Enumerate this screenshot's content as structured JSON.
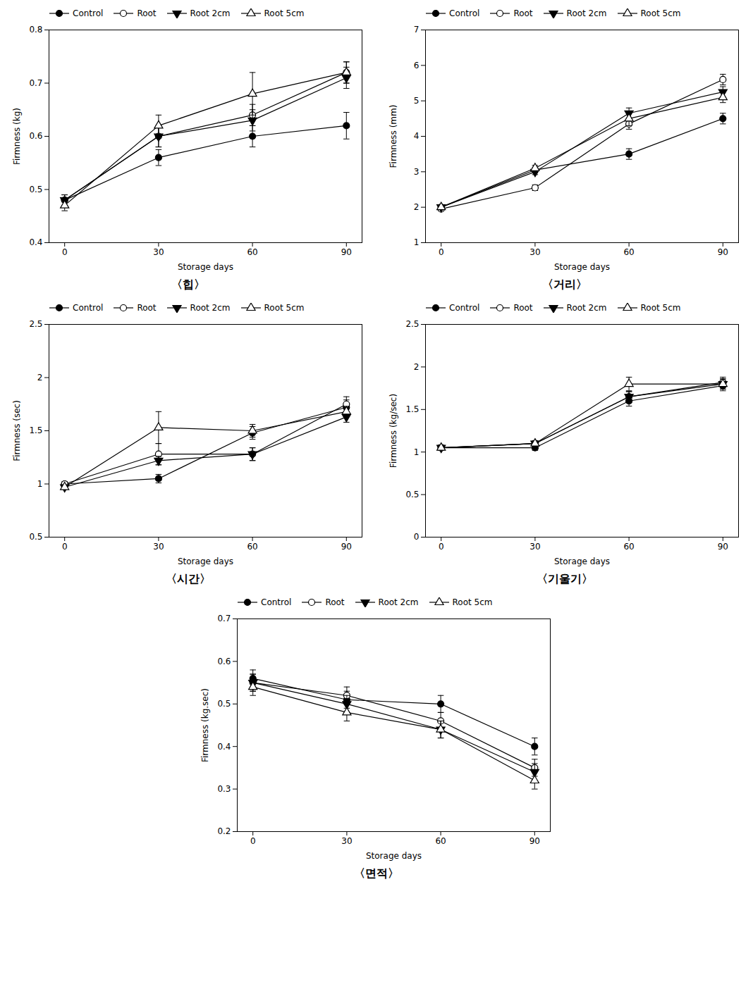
{
  "chart_data": [
    {
      "type": "line",
      "title": "〈힙〉",
      "xlabel": "Storage days",
      "ylabel": "Firmness (kg)",
      "x": [
        0,
        30,
        60,
        90
      ],
      "xlim": [
        -5,
        95
      ],
      "xticks": [
        0,
        30,
        60,
        90
      ],
      "ylim": [
        0.4,
        0.8
      ],
      "yticks": [
        0.4,
        0.5,
        0.6,
        0.7,
        0.8
      ],
      "legend": "upper left",
      "grid": false,
      "series": [
        {
          "name": "Control",
          "color": "black",
          "marker": "filled-circle",
          "values": [
            0.48,
            0.56,
            0.6,
            0.62
          ],
          "yerr": [
            0.01,
            0.015,
            0.02,
            0.025
          ]
        },
        {
          "name": "Root",
          "color": "black",
          "marker": "open-circle",
          "values": [
            0.48,
            0.6,
            0.64,
            0.72
          ],
          "yerr": [
            0.01,
            0.02,
            0.02,
            0.02
          ]
        },
        {
          "name": "Root 2cm",
          "color": "black",
          "marker": "filled-triangle-down",
          "values": [
            0.48,
            0.6,
            0.63,
            0.71
          ],
          "yerr": [
            0.01,
            0.02,
            0.02,
            0.02
          ]
        },
        {
          "name": "Root 5cm",
          "color": "black",
          "marker": "open-triangle-up",
          "values": [
            0.47,
            0.62,
            0.68,
            0.72
          ],
          "yerr": [
            0.01,
            0.02,
            0.04,
            0.02
          ]
        }
      ]
    },
    {
      "type": "line",
      "title": "〈거리〉",
      "xlabel": "Storage days",
      "ylabel": "Firmness (mm)",
      "x": [
        0,
        30,
        60,
        90
      ],
      "xlim": [
        -5,
        95
      ],
      "xticks": [
        0,
        30,
        60,
        90
      ],
      "ylim": [
        1,
        7
      ],
      "yticks": [
        1,
        2,
        3,
        4,
        5,
        6,
        7
      ],
      "legend": "upper left",
      "grid": false,
      "series": [
        {
          "name": "Control",
          "color": "black",
          "marker": "filled-circle",
          "values": [
            2.0,
            3.05,
            3.5,
            4.5
          ],
          "yerr": [
            0.05,
            0.08,
            0.15,
            0.15
          ]
        },
        {
          "name": "Root",
          "color": "black",
          "marker": "open-circle",
          "values": [
            1.95,
            2.55,
            4.35,
            5.6
          ],
          "yerr": [
            0.05,
            0.08,
            0.15,
            0.15
          ]
        },
        {
          "name": "Root 2cm",
          "color": "black",
          "marker": "filled-triangle-down",
          "values": [
            2.0,
            3.0,
            4.65,
            5.25
          ],
          "yerr": [
            0.05,
            0.08,
            0.15,
            0.15
          ]
        },
        {
          "name": "Root 5cm",
          "color": "black",
          "marker": "open-triangle-up",
          "values": [
            2.0,
            3.1,
            4.5,
            5.1
          ],
          "yerr": [
            0.05,
            0.08,
            0.2,
            0.15
          ]
        }
      ]
    },
    {
      "type": "line",
      "title": "〈시간〉",
      "xlabel": "Storage days",
      "ylabel": "Firmness (sec)",
      "x": [
        0,
        30,
        60,
        90
      ],
      "xlim": [
        -5,
        95
      ],
      "xticks": [
        0,
        30,
        60,
        90
      ],
      "ylim": [
        0.5,
        2.5
      ],
      "yticks": [
        0.5,
        1,
        1.5,
        2,
        2.5
      ],
      "legend": "upper left",
      "grid": false,
      "series": [
        {
          "name": "Control",
          "color": "black",
          "marker": "filled-circle",
          "values": [
            1.0,
            1.05,
            1.48,
            1.72
          ],
          "yerr": [
            0.02,
            0.04,
            0.06,
            0.07
          ]
        },
        {
          "name": "Root",
          "color": "black",
          "marker": "open-circle",
          "values": [
            1.0,
            1.28,
            1.28,
            1.75
          ],
          "yerr": [
            0.02,
            0.1,
            0.06,
            0.07
          ]
        },
        {
          "name": "Root 2cm",
          "color": "black",
          "marker": "filled-triangle-down",
          "values": [
            0.97,
            1.22,
            1.28,
            1.63
          ],
          "yerr": [
            0.02,
            0.04,
            0.06,
            0.05
          ]
        },
        {
          "name": "Root 5cm",
          "color": "black",
          "marker": "open-triangle-up",
          "values": [
            0.97,
            1.53,
            1.5,
            1.68
          ],
          "yerr": [
            0.02,
            0.15,
            0.06,
            0.05
          ]
        }
      ]
    },
    {
      "type": "line",
      "title": "〈기울기〉",
      "xlabel": "Storage days",
      "ylabel": "Firmness (kg/sec)",
      "x": [
        0,
        30,
        60,
        90
      ],
      "xlim": [
        -5,
        95
      ],
      "xticks": [
        0,
        30,
        60,
        90
      ],
      "ylim": [
        0,
        2.5
      ],
      "yticks": [
        0,
        0.5,
        1,
        1.5,
        2,
        2.5
      ],
      "legend": "upper left",
      "grid": false,
      "series": [
        {
          "name": "Control",
          "color": "black",
          "marker": "filled-circle",
          "values": [
            1.05,
            1.05,
            1.6,
            1.78
          ],
          "yerr": [
            0.03,
            0.03,
            0.06,
            0.06
          ]
        },
        {
          "name": "Root",
          "color": "black",
          "marker": "open-circle",
          "values": [
            1.05,
            1.1,
            1.65,
            1.82
          ],
          "yerr": [
            0.03,
            0.03,
            0.06,
            0.06
          ]
        },
        {
          "name": "Root 2cm",
          "color": "black",
          "marker": "filled-triangle-down",
          "values": [
            1.05,
            1.1,
            1.65,
            1.8
          ],
          "yerr": [
            0.03,
            0.03,
            0.06,
            0.06
          ]
        },
        {
          "name": "Root 5cm",
          "color": "black",
          "marker": "open-triangle-up",
          "values": [
            1.05,
            1.1,
            1.8,
            1.8
          ],
          "yerr": [
            0.03,
            0.03,
            0.08,
            0.06
          ]
        }
      ]
    },
    {
      "type": "line",
      "title": "〈면적〉",
      "xlabel": "Storage days",
      "ylabel": "Firmness (kg.sec)",
      "x": [
        0,
        30,
        60,
        90
      ],
      "xlim": [
        -5,
        95
      ],
      "xticks": [
        0,
        30,
        60,
        90
      ],
      "ylim": [
        0.2,
        0.7
      ],
      "yticks": [
        0.2,
        0.3,
        0.4,
        0.5,
        0.6,
        0.7
      ],
      "legend": "upper left",
      "grid": false,
      "series": [
        {
          "name": "Control",
          "color": "black",
          "marker": "filled-circle",
          "values": [
            0.56,
            0.51,
            0.5,
            0.4
          ],
          "yerr": [
            0.02,
            0.02,
            0.02,
            0.02
          ]
        },
        {
          "name": "Root",
          "color": "black",
          "marker": "open-circle",
          "values": [
            0.55,
            0.52,
            0.46,
            0.35
          ],
          "yerr": [
            0.02,
            0.02,
            0.02,
            0.02
          ]
        },
        {
          "name": "Root 2cm",
          "color": "black",
          "marker": "filled-triangle-down",
          "values": [
            0.55,
            0.5,
            0.44,
            0.34
          ],
          "yerr": [
            0.02,
            0.02,
            0.02,
            0.02
          ]
        },
        {
          "name": "Root 5cm",
          "color": "black",
          "marker": "open-triangle-up",
          "values": [
            0.54,
            0.48,
            0.44,
            0.32
          ],
          "yerr": [
            0.02,
            0.02,
            0.02,
            0.02
          ]
        }
      ]
    }
  ]
}
